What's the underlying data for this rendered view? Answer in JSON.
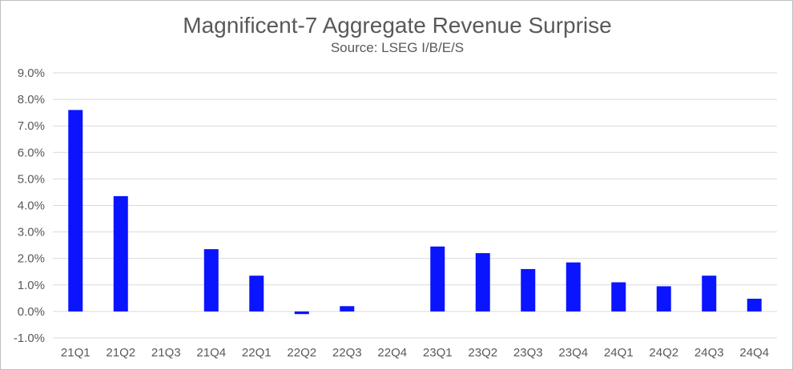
{
  "chart_data": {
    "type": "bar",
    "title": "Magnificent-7 Aggregate Revenue Surprise",
    "subtitle": "Source: LSEG I/B/E/S",
    "xlabel": "",
    "ylabel": "",
    "categories": [
      "21Q1",
      "21Q2",
      "21Q3",
      "21Q4",
      "22Q1",
      "22Q2",
      "22Q3",
      "22Q4",
      "23Q1",
      "23Q2",
      "23Q3",
      "23Q4",
      "24Q1",
      "24Q2",
      "24Q3",
      "24Q4"
    ],
    "values": [
      7.6,
      4.35,
      null,
      2.35,
      1.35,
      -0.1,
      0.2,
      null,
      2.45,
      2.2,
      1.6,
      1.85,
      1.1,
      0.95,
      1.35,
      0.48
    ],
    "value_format": "percent_1dp",
    "ylim": [
      -1.0,
      9.0
    ],
    "yticks": [
      -1.0,
      0.0,
      1.0,
      2.0,
      3.0,
      4.0,
      5.0,
      6.0,
      7.0,
      8.0,
      9.0
    ],
    "ytick_labels": [
      "-1.0%",
      "0.0%",
      "1.0%",
      "2.0%",
      "3.0%",
      "4.0%",
      "5.0%",
      "6.0%",
      "7.0%",
      "8.0%",
      "9.0%"
    ],
    "grid": true,
    "legend": "none",
    "bar_color": "#0a14ff",
    "grid_color": "#d9d9d9"
  }
}
